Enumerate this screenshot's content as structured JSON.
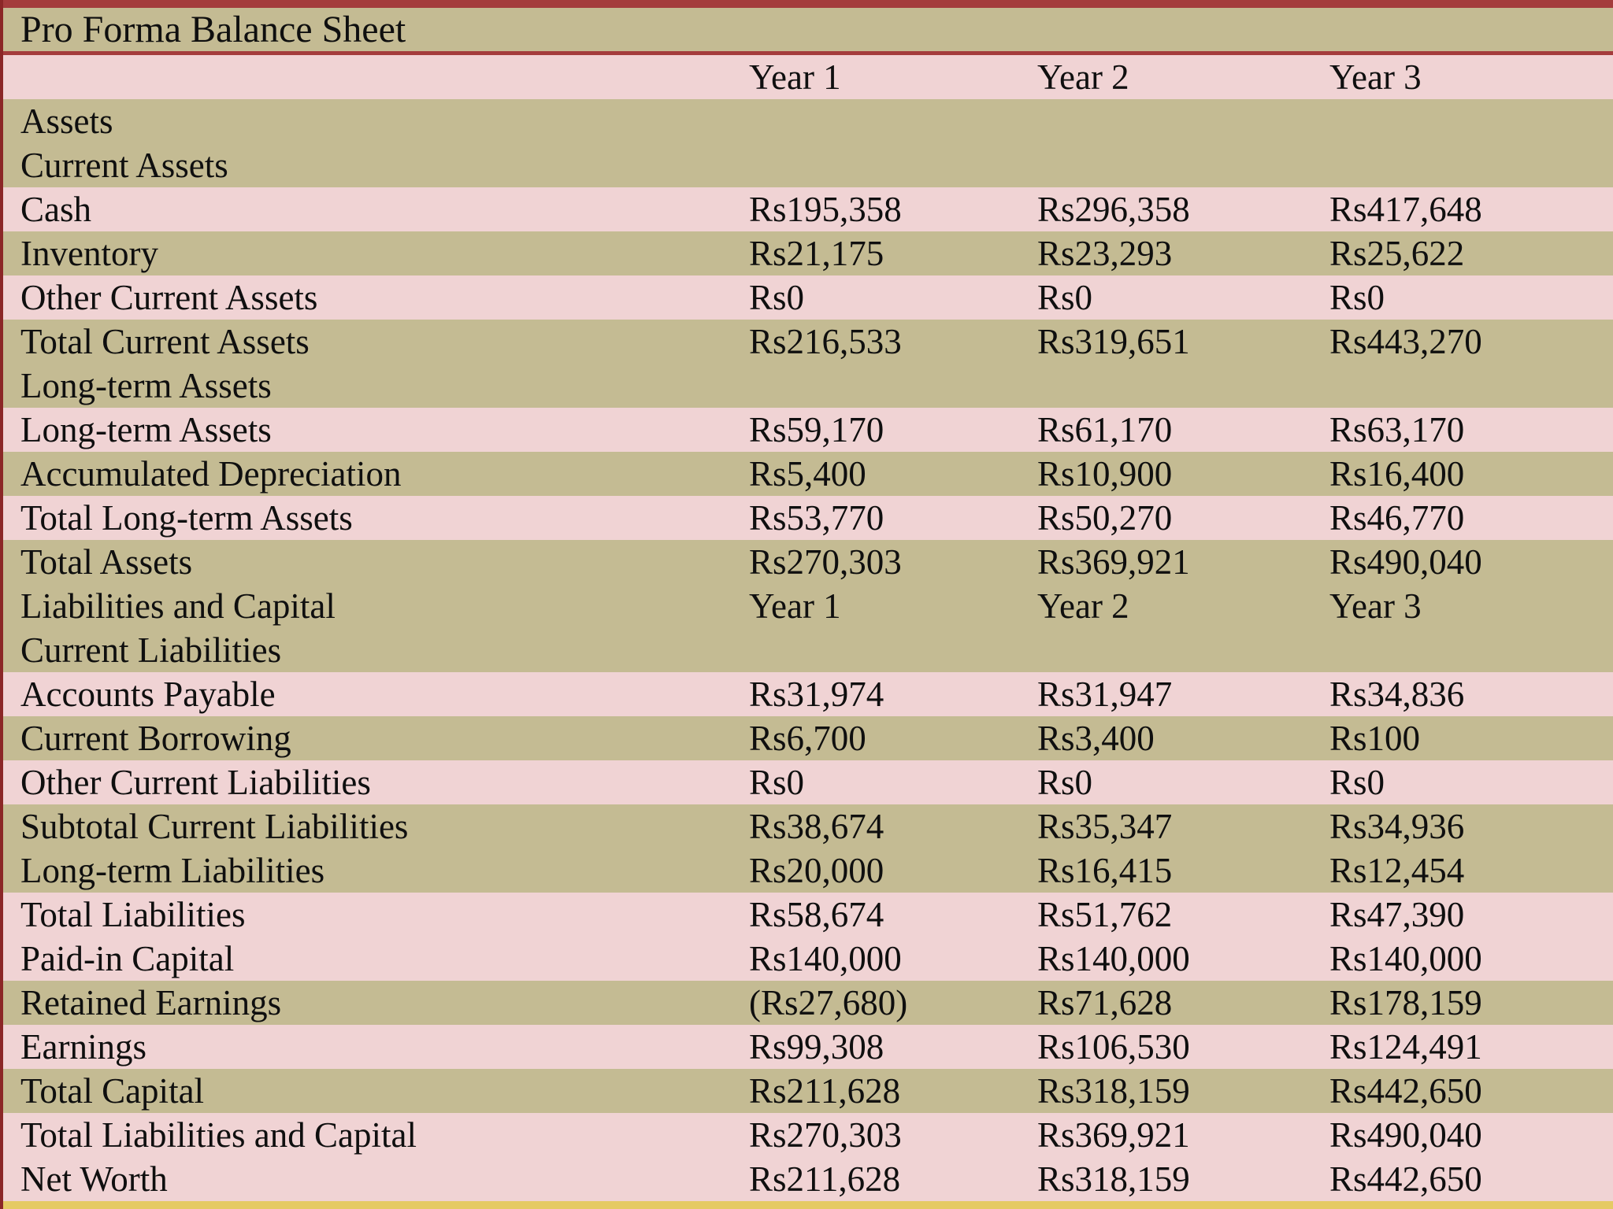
{
  "title": "Pro Forma Balance Sheet",
  "header": {
    "columns": [
      "Year 1",
      "Year 2",
      "Year 3"
    ]
  },
  "currency_prefix": "Rs",
  "colors": {
    "olive_row": "#c4bb93",
    "pink_row": "#f0d3d4",
    "top_border": "#a43c3c",
    "title_underline": "#a43c3c",
    "left_border": "#8b2727",
    "bottom_border": "#e5ca64",
    "text": "#0f0f0f"
  },
  "rows": [
    {
      "label": "",
      "values": [
        "Year 1",
        "Year 2",
        "Year 3"
      ],
      "bg": "pink",
      "kind": "column-header"
    },
    {
      "label": "Assets",
      "values": [],
      "bg": "olive",
      "kind": "section"
    },
    {
      "label": "Current Assets",
      "values": [],
      "bg": "olive",
      "kind": "section"
    },
    {
      "label": "Cash",
      "values": [
        "Rs195,358",
        "Rs296,358",
        "Rs417,648"
      ],
      "bg": "pink",
      "kind": "data"
    },
    {
      "label": "Inventory",
      "values": [
        "Rs21,175",
        "Rs23,293",
        "Rs25,622"
      ],
      "bg": "olive",
      "kind": "data"
    },
    {
      "label": "Other Current Assets",
      "values": [
        "Rs0",
        "Rs0",
        "Rs0"
      ],
      "bg": "pink",
      "kind": "data"
    },
    {
      "label": "Total Current Assets",
      "values": [
        "Rs216,533",
        "Rs319,651",
        "Rs443,270"
      ],
      "bg": "olive",
      "kind": "total"
    },
    {
      "label": "Long-term Assets",
      "values": [],
      "bg": "olive",
      "kind": "section"
    },
    {
      "label": "Long-term Assets",
      "values": [
        "Rs59,170",
        "Rs61,170",
        "Rs63,170"
      ],
      "bg": "pink",
      "kind": "data"
    },
    {
      "label": "Accumulated Depreciation",
      "values": [
        "Rs5,400",
        "Rs10,900",
        "Rs16,400"
      ],
      "bg": "olive",
      "kind": "data"
    },
    {
      "label": "Total Long-term Assets",
      "values": [
        "Rs53,770",
        "Rs50,270",
        "Rs46,770"
      ],
      "bg": "pink",
      "kind": "total"
    },
    {
      "label": "Total Assets",
      "values": [
        "Rs270,303",
        "Rs369,921",
        "Rs490,040"
      ],
      "bg": "olive",
      "kind": "total"
    },
    {
      "label": "Liabilities and Capital",
      "values": [
        "Year 1",
        "Year 2",
        "Year 3"
      ],
      "bg": "olive",
      "kind": "column-header"
    },
    {
      "label": "Current Liabilities",
      "values": [],
      "bg": "olive",
      "kind": "section"
    },
    {
      "label": "Accounts Payable",
      "values": [
        "Rs31,974",
        "Rs31,947",
        "Rs34,836"
      ],
      "bg": "pink",
      "kind": "data"
    },
    {
      "label": "Current Borrowing",
      "values": [
        "Rs6,700",
        "Rs3,400",
        "Rs100"
      ],
      "bg": "olive",
      "kind": "data"
    },
    {
      "label": "Other Current Liabilities",
      "values": [
        "Rs0",
        "Rs0",
        "Rs0"
      ],
      "bg": "pink",
      "kind": "data"
    },
    {
      "label": "Subtotal Current Liabilities",
      "values": [
        "Rs38,674",
        "Rs35,347",
        "Rs34,936"
      ],
      "bg": "olive",
      "kind": "total"
    },
    {
      "label": "Long-term Liabilities",
      "values": [
        "Rs20,000",
        "Rs16,415",
        "Rs12,454"
      ],
      "bg": "olive",
      "kind": "data"
    },
    {
      "label": "Total Liabilities",
      "values": [
        "Rs58,674",
        "Rs51,762",
        "Rs47,390"
      ],
      "bg": "pink",
      "kind": "total"
    },
    {
      "label": "Paid-in Capital",
      "values": [
        "Rs140,000",
        "Rs140,000",
        "Rs140,000"
      ],
      "bg": "pink",
      "kind": "data"
    },
    {
      "label": "Retained Earnings",
      "values": [
        "(Rs27,680)",
        "Rs71,628",
        "Rs178,159"
      ],
      "bg": "olive",
      "kind": "data"
    },
    {
      "label": "Earnings",
      "values": [
        "Rs99,308",
        "Rs106,530",
        "Rs124,491"
      ],
      "bg": "pink",
      "kind": "data"
    },
    {
      "label": "Total Capital",
      "values": [
        "Rs211,628",
        "Rs318,159",
        "Rs442,650"
      ],
      "bg": "olive",
      "kind": "total"
    },
    {
      "label": "Total Liabilities and Capital",
      "values": [
        "Rs270,303",
        "Rs369,921",
        "Rs490,040"
      ],
      "bg": "pink",
      "kind": "total"
    },
    {
      "label": "Net Worth",
      "values": [
        "Rs211,628",
        "Rs318,159",
        "Rs442,650"
      ],
      "bg": "pink",
      "kind": "total"
    }
  ]
}
